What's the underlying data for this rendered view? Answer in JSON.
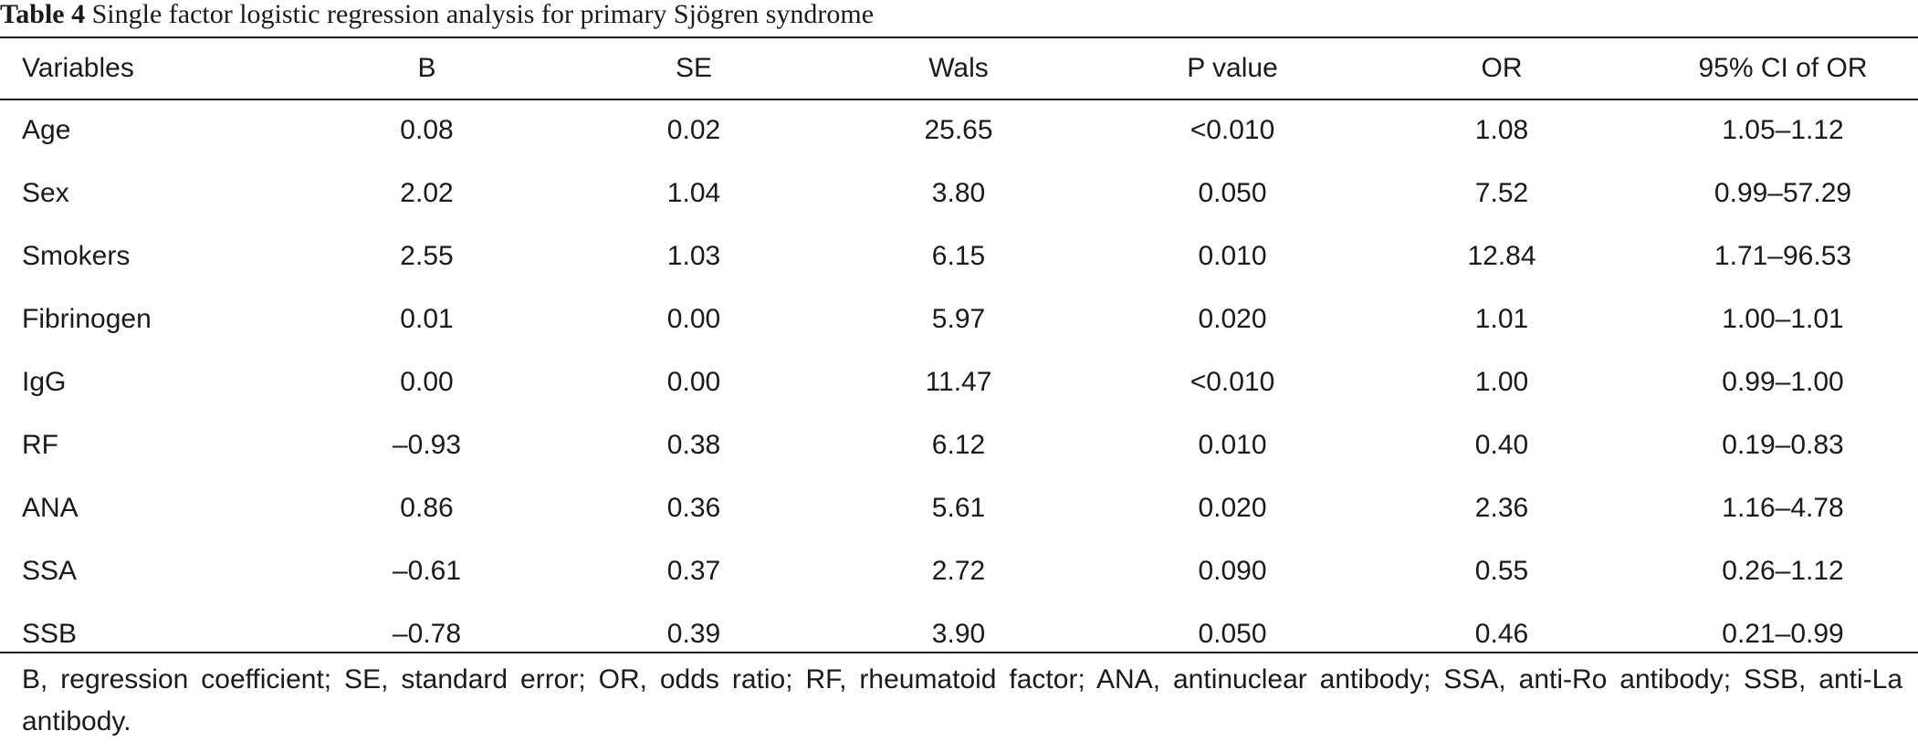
{
  "caption": {
    "label": "Table 4",
    "text": "Single factor logistic regression analysis for primary Sjögren syndrome"
  },
  "headers": [
    "Variables",
    "B",
    "SE",
    "Wals",
    "P value",
    "OR",
    "95% CI of OR"
  ],
  "rows": [
    [
      "Age",
      "0.08",
      "0.02",
      "25.65",
      "<0.010",
      "1.08",
      "1.05–1.12"
    ],
    [
      "Sex",
      "2.02",
      "1.04",
      "3.80",
      "0.050",
      "7.52",
      "0.99–57.29"
    ],
    [
      "Smokers",
      "2.55",
      "1.03",
      "6.15",
      "0.010",
      "12.84",
      "1.71–96.53"
    ],
    [
      "Fibrinogen",
      "0.01",
      "0.00",
      "5.97",
      "0.020",
      "1.01",
      "1.00–1.01"
    ],
    [
      "IgG",
      "0.00",
      "0.00",
      "11.47",
      "<0.010",
      "1.00",
      "0.99–1.00"
    ],
    [
      "RF",
      "–0.93",
      "0.38",
      "6.12",
      "0.010",
      "0.40",
      "0.19–0.83"
    ],
    [
      "ANA",
      "0.86",
      "0.36",
      "5.61",
      "0.020",
      "2.36",
      "1.16–4.78"
    ],
    [
      "SSA",
      "–0.61",
      "0.37",
      "2.72",
      "0.090",
      "0.55",
      "0.26–1.12"
    ],
    [
      "SSB",
      "–0.78",
      "0.39",
      "3.90",
      "0.050",
      "0.46",
      "0.21–0.99"
    ]
  ],
  "footnote": "B, regression coefficient; SE, standard error; OR, odds ratio; RF, rheumatoid factor; ANA, antinuclear antibody; SSA, anti-Ro antibody; SSB, anti-La antibody."
}
